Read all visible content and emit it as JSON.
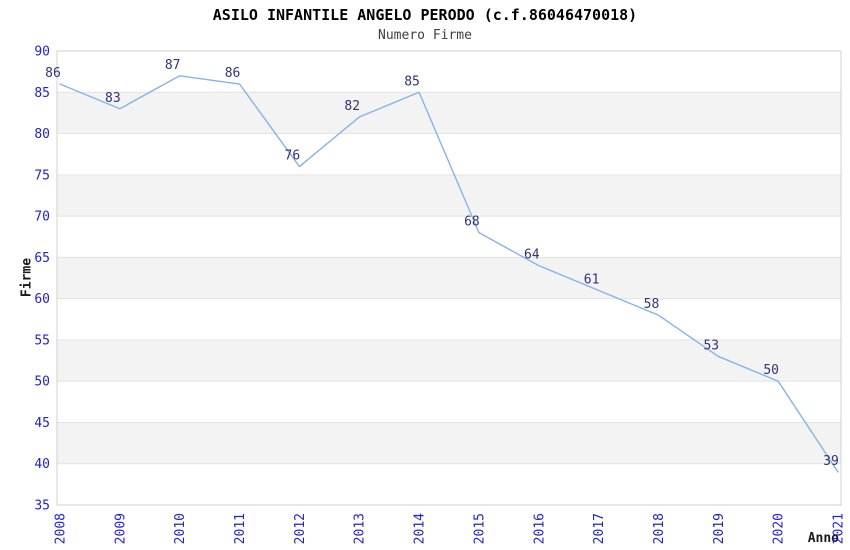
{
  "window": {
    "background": "#ffffff"
  },
  "chart_data": {
    "type": "line",
    "title": "ASILO INFANTILE ANGELO PERODO (c.f.86046470018)",
    "subtitle": "Numero Firme",
    "xlabel": "Anno",
    "ylabel": "Firme",
    "x": [
      "2008",
      "2009",
      "2010",
      "2011",
      "2012",
      "2013",
      "2014",
      "2015",
      "2016",
      "2017",
      "2018",
      "2019",
      "2020",
      "2021"
    ],
    "series": [
      {
        "name": "Numero Firme",
        "values": [
          86,
          83,
          87,
          86,
          76,
          82,
          85,
          68,
          64,
          61,
          58,
          53,
          50,
          39
        ]
      }
    ],
    "ylim": [
      35,
      90
    ],
    "ytick_step": 5,
    "yticks": [
      35,
      40,
      45,
      50,
      55,
      60,
      65,
      70,
      75,
      80,
      85,
      90
    ],
    "grid": "horizontal-gridlines-with-alternating-bands",
    "legend": "none",
    "point_labels": true,
    "x_tick_rotation_deg": 90,
    "colors": {
      "line": "#85b4e8",
      "point_label": "#333377",
      "tick_label": "#2323cc",
      "axis_label": "#1a1a1a",
      "title": "#000000",
      "subtitle": "#404040",
      "band": "#f3f3f3",
      "gridline": "#e3e3e3",
      "plot_border": "#d0d0d0",
      "background": "#ffffff"
    }
  }
}
